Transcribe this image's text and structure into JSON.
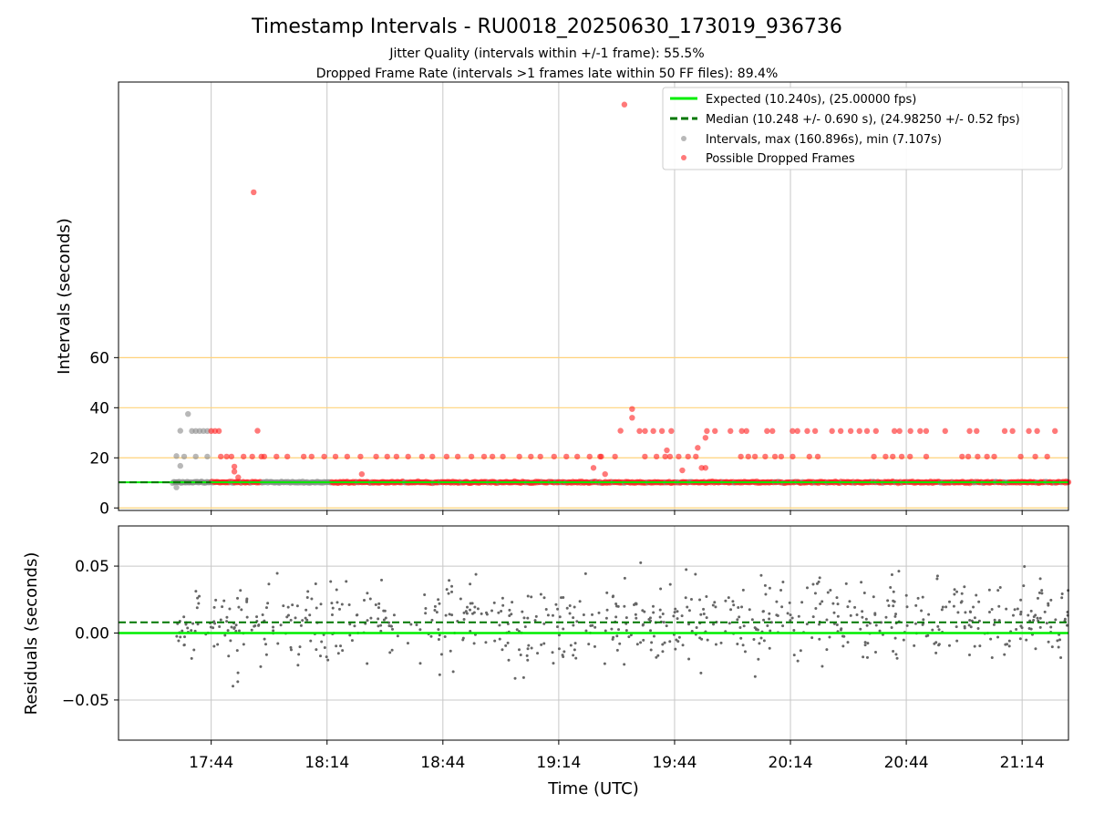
{
  "title": "Timestamp Intervals - RU0018_20250630_173019_936736",
  "subtitle_1": "Jitter Quality (intervals within +/-1 frame): 55.5%",
  "subtitle_2": "Dropped Frame Rate (intervals >1 frames late within 50 FF files): 89.4%",
  "colors": {
    "expected": "#00ee00",
    "median": "#007700",
    "interval": "#888888",
    "dropped": "#ff2020",
    "threshold": "#ffd27a",
    "grid": "#c8c8c8",
    "residual": "#666666"
  },
  "chart_data": [
    {
      "type": "scatter",
      "name": "intervals",
      "ylabel": "Intervals (seconds)",
      "xlabel": "",
      "xlim": [
        "17:20",
        "21:26"
      ],
      "ylim": [
        -1,
        170
      ],
      "yticks": [
        0,
        20,
        40,
        60
      ],
      "xticks": [
        "17:44",
        "18:14",
        "18:44",
        "19:14",
        "19:44",
        "20:14",
        "20:44",
        "21:14"
      ],
      "threshold_lines": [
        0,
        20,
        40,
        60
      ],
      "legend_position": "top-right",
      "legend": {
        "expected": "Expected (10.240s), (25.00000 fps)",
        "median": "Median (10.248 +/- 0.690 s), (24.98250 +/- 0.52 fps)",
        "intervals": "Intervals, max (160.896s), min (7.107s)",
        "dropped": "Possible Dropped Frames"
      },
      "expected_value": 10.24,
      "median_value": 10.248,
      "intervals_max": 160.896,
      "intervals_min": 7.107,
      "dropped_outliers": [
        {
          "t": "17:55",
          "v": 126
        },
        {
          "t": "19:31",
          "v": 161
        }
      ],
      "dropped_duplicate_band": {
        "from": "19:34",
        "to": "21:26",
        "v": [
          30.7,
          20.5
        ]
      }
    },
    {
      "type": "scatter",
      "name": "residuals",
      "ylabel": "Residuals (seconds)",
      "xlabel": "Time (UTC)",
      "xlim": [
        "17:20",
        "21:26"
      ],
      "ylim": [
        -0.08,
        0.08
      ],
      "yticks": [
        -0.05,
        0.0,
        0.05
      ],
      "ytick_labels": [
        "−0.05",
        "0.00",
        "0.05"
      ],
      "xticks": [
        "17:44",
        "18:14",
        "18:44",
        "19:14",
        "19:44",
        "20:14",
        "20:44",
        "21:14"
      ],
      "expected_value": 0.0,
      "median_value": 0.008,
      "residual_spread": 0.025
    }
  ]
}
